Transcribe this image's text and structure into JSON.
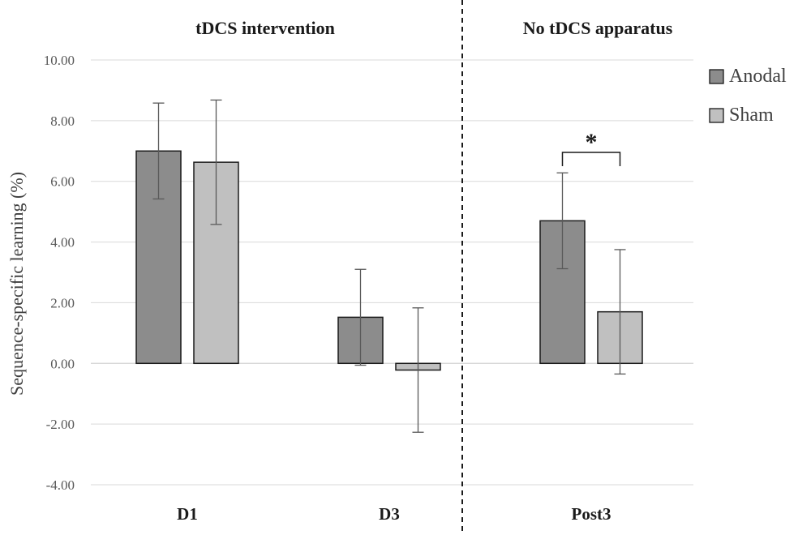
{
  "chart_data": {
    "type": "bar",
    "ylabel": "Sequence-specific learning (%)",
    "xlabel": "",
    "ylim": [
      -4,
      10
    ],
    "yticks": [
      10,
      8,
      6,
      4,
      2,
      0,
      -2,
      -4
    ],
    "ytick_labels": [
      "10.00",
      "8.00",
      "6.00",
      "4.00",
      "2.00",
      "0.00",
      "-2.00",
      "-4.00"
    ],
    "categories": [
      "D1",
      "D3",
      "Post3"
    ],
    "series": [
      {
        "name": "Anodal",
        "color": "#8c8c8c",
        "values": [
          7.0,
          1.52,
          4.7
        ],
        "error": [
          1.58,
          1.58,
          1.58
        ]
      },
      {
        "name": "Sham",
        "color": "#c0c0c0",
        "values": [
          6.63,
          -0.22,
          1.7
        ],
        "error": [
          2.05,
          2.05,
          2.05
        ]
      }
    ],
    "sections": [
      {
        "label": "tDCS intervention",
        "categories": [
          "D1",
          "D3"
        ]
      },
      {
        "label": "No tDCS apparatus",
        "categories": [
          "Post3"
        ]
      }
    ],
    "significance": {
      "category": "Post3",
      "label": "*"
    },
    "grid": true,
    "legend_position": "right"
  }
}
